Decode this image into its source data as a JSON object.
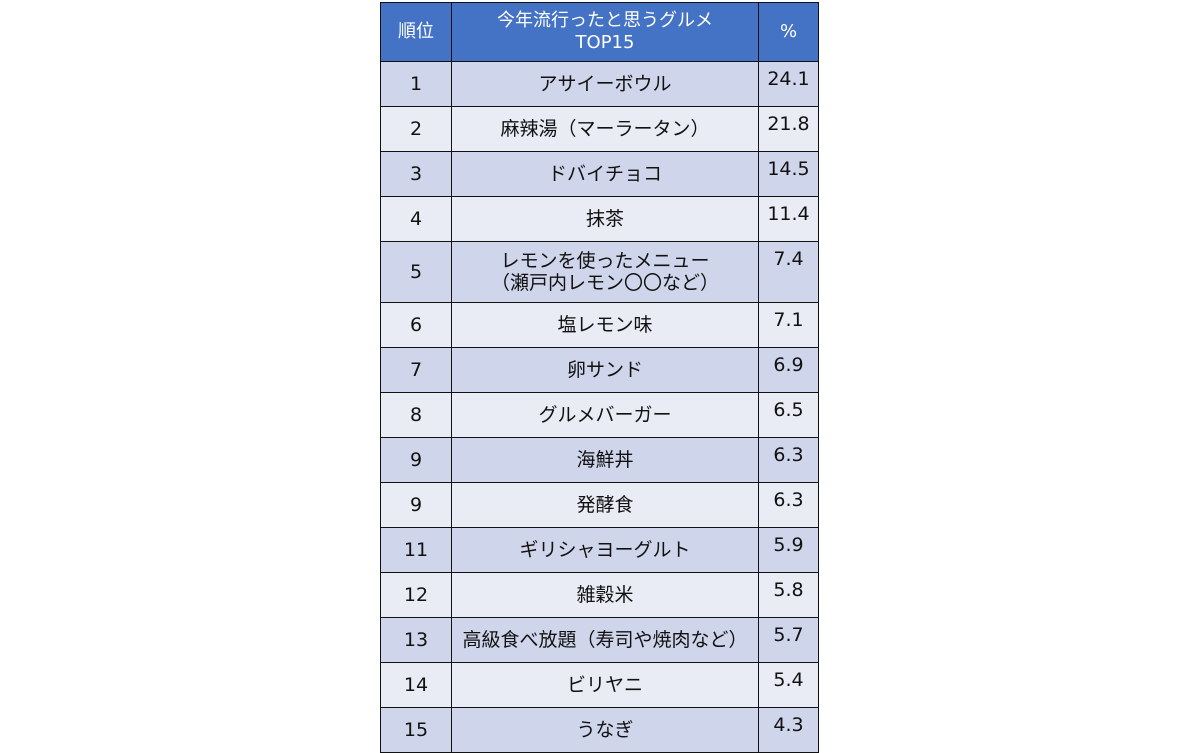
{
  "table": {
    "header": [
      "順位",
      "今年流行ったと思うグルメ\nTOP15",
      "%"
    ],
    "rows": [
      [
        1,
        "アサイーボウル",
        24.1
      ],
      [
        2,
        "麻辣湯（マーラータン）",
        21.8
      ],
      [
        3,
        "ドバイチョコ",
        14.5
      ],
      [
        4,
        "抹茶",
        11.4
      ],
      [
        5,
        "レモンを使ったメニュー\n（瀬戸内レモン〇〇など）",
        7.4
      ],
      [
        6,
        "塩レモン味",
        7.1
      ],
      [
        7,
        "卵サンド",
        6.9
      ],
      [
        8,
        "グルメバーガー",
        6.5
      ],
      [
        9,
        "海鮮丼",
        6.3
      ],
      [
        9,
        "発酵食",
        6.3
      ],
      [
        11,
        "ギリシャヨーグルト",
        5.9
      ],
      [
        12,
        "雑穀米",
        5.8
      ],
      [
        13,
        "高級食べ放題（寿司や焼肉など）",
        5.7
      ],
      [
        14,
        "ビリヤニ",
        5.4
      ],
      [
        15,
        "うなぎ",
        4.3
      ]
    ]
  }
}
